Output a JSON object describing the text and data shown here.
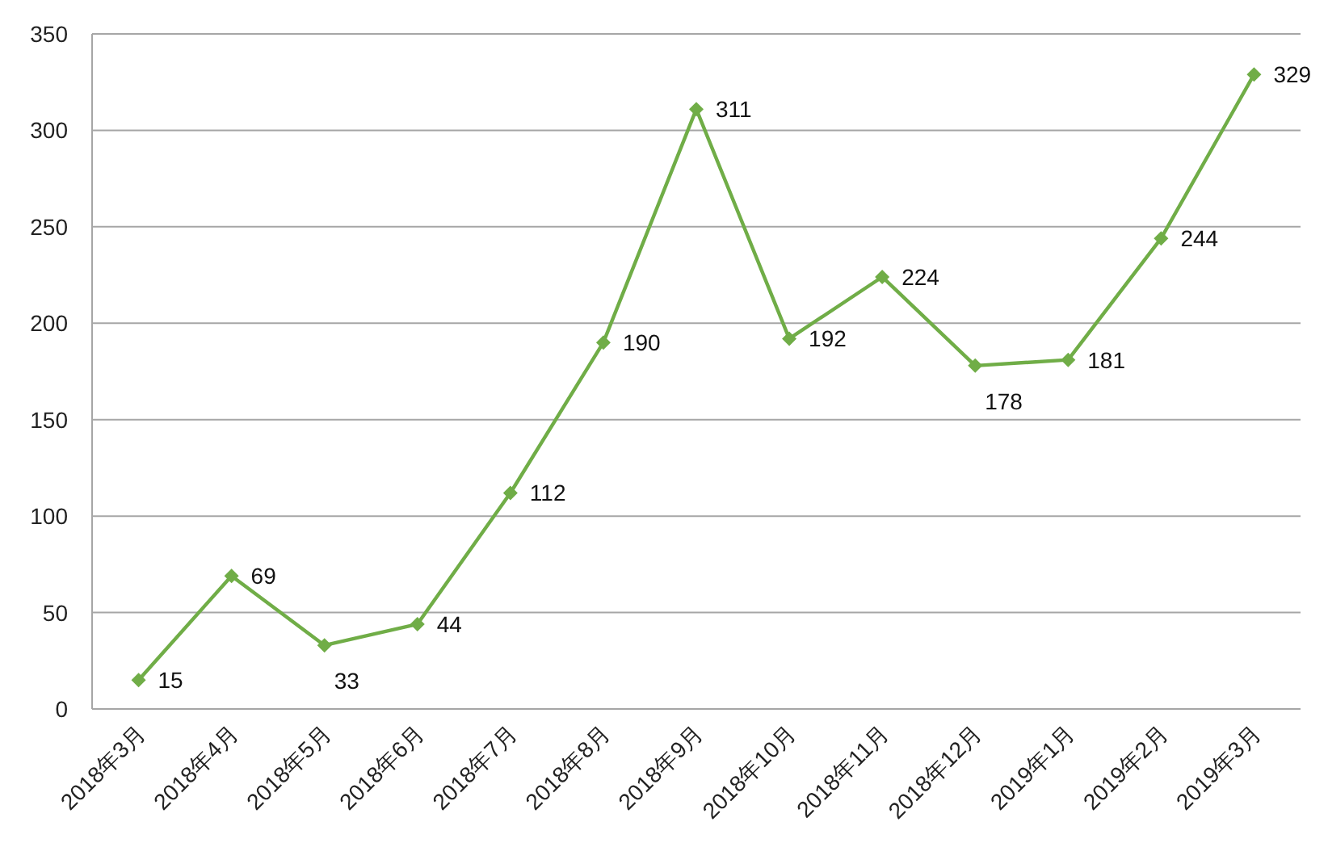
{
  "chart_data": {
    "type": "line",
    "categories": [
      "2018年3月",
      "2018年4月",
      "2018年5月",
      "2018年6月",
      "2018年7月",
      "2018年8月",
      "2018年9月",
      "2018年10月",
      "2018年11月",
      "2018年12月",
      "2019年1月",
      "2019年2月",
      "2019年3月"
    ],
    "series": [
      {
        "color": "#70ad47",
        "values": [
          15,
          69,
          33,
          44,
          112,
          190,
          311,
          192,
          224,
          178,
          181,
          244,
          329
        ]
      }
    ],
    "ylim": [
      0,
      350
    ],
    "yticks": [
      0,
      50,
      100,
      150,
      200,
      250,
      300,
      350
    ],
    "grid": "y",
    "marker": "diamond",
    "line_style": "solid",
    "data_labels": true
  }
}
